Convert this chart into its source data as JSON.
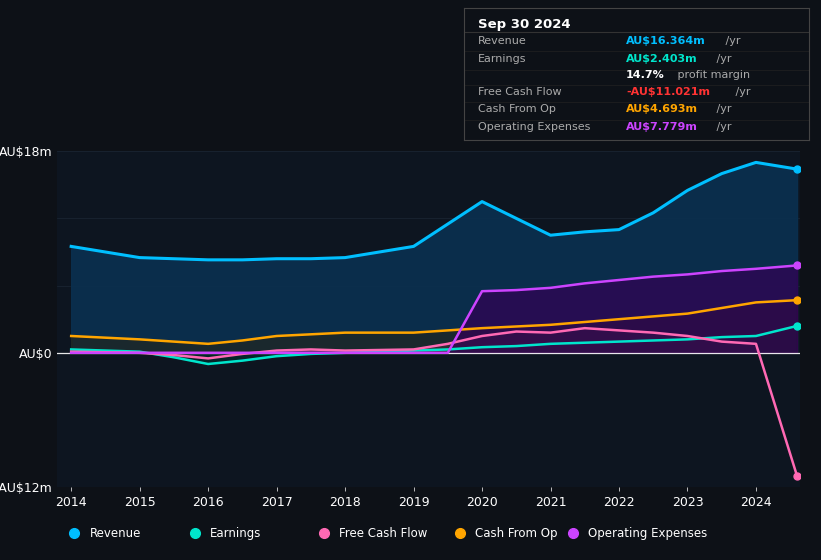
{
  "bg_color": "#0d1117",
  "plot_bg_color": "#0d1520",
  "title": "Sep 30 2024",
  "info_box_rows": [
    {
      "label": "Revenue",
      "value": "AU$16.364m",
      "suffix": " /yr",
      "value_color": "#00bfff"
    },
    {
      "label": "Earnings",
      "value": "AU$2.403m",
      "suffix": " /yr",
      "value_color": "#00e5cc"
    },
    {
      "label": "",
      "value": "14.7%",
      "suffix": " profit margin",
      "value_color": "#ffffff"
    },
    {
      "label": "Free Cash Flow",
      "value": "-AU$11.021m",
      "suffix": " /yr",
      "value_color": "#ff3333"
    },
    {
      "label": "Cash From Op",
      "value": "AU$4.693m",
      "suffix": " /yr",
      "value_color": "#ffa500"
    },
    {
      "label": "Operating Expenses",
      "value": "AU$7.779m",
      "suffix": " /yr",
      "value_color": "#cc44ff"
    }
  ],
  "ylim": [
    -12,
    18
  ],
  "yticks": [
    -12,
    0,
    18
  ],
  "ytick_labels": [
    "-AU$12m",
    "AU$0",
    "AU$18m"
  ],
  "years": [
    2014.0,
    2014.5,
    2015.0,
    2015.5,
    2016.0,
    2016.5,
    2017.0,
    2017.5,
    2018.0,
    2018.5,
    2019.0,
    2019.5,
    2020.0,
    2020.5,
    2021.0,
    2021.5,
    2022.0,
    2022.5,
    2023.0,
    2023.5,
    2024.0,
    2024.6
  ],
  "revenue": [
    9.5,
    9.0,
    8.5,
    8.4,
    8.3,
    8.3,
    8.4,
    8.4,
    8.5,
    9.0,
    9.5,
    11.5,
    13.5,
    12.0,
    10.5,
    10.8,
    11.0,
    12.5,
    14.5,
    16.0,
    17.0,
    16.4
  ],
  "earnings": [
    0.3,
    0.2,
    0.1,
    -0.4,
    -1.0,
    -0.7,
    -0.3,
    -0.1,
    0.0,
    0.1,
    0.2,
    0.3,
    0.5,
    0.6,
    0.8,
    0.9,
    1.0,
    1.1,
    1.2,
    1.4,
    1.5,
    2.4
  ],
  "free_cash_flow": [
    0.1,
    0.05,
    0.0,
    -0.2,
    -0.5,
    -0.1,
    0.2,
    0.3,
    0.2,
    0.25,
    0.3,
    0.8,
    1.5,
    1.9,
    1.8,
    2.2,
    2.0,
    1.8,
    1.5,
    1.0,
    0.8,
    -11.0
  ],
  "cash_from_op": [
    1.5,
    1.35,
    1.2,
    1.0,
    0.8,
    1.1,
    1.5,
    1.65,
    1.8,
    1.8,
    1.8,
    2.0,
    2.2,
    2.35,
    2.5,
    2.75,
    3.0,
    3.25,
    3.5,
    4.0,
    4.5,
    4.7
  ],
  "operating_expenses": [
    0.0,
    0.0,
    0.0,
    0.0,
    0.0,
    0.0,
    0.0,
    0.0,
    0.0,
    0.0,
    0.0,
    0.0,
    5.5,
    5.6,
    5.8,
    6.2,
    6.5,
    6.8,
    7.0,
    7.3,
    7.5,
    7.8
  ],
  "revenue_color": "#00bfff",
  "earnings_color": "#00e5cc",
  "fcf_color": "#ff69b4",
  "cashop_color": "#ffa500",
  "opex_color": "#cc44ff",
  "legend_items": [
    {
      "label": "Revenue",
      "color": "#00bfff"
    },
    {
      "label": "Earnings",
      "color": "#00e5cc"
    },
    {
      "label": "Free Cash Flow",
      "color": "#ff69b4"
    },
    {
      "label": "Cash From Op",
      "color": "#ffa500"
    },
    {
      "label": "Operating Expenses",
      "color": "#cc44ff"
    }
  ]
}
